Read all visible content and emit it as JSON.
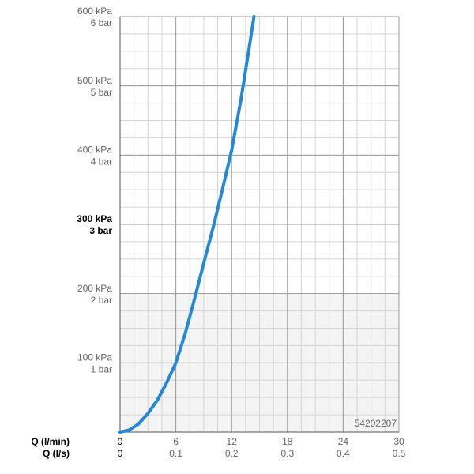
{
  "chart_data": {
    "type": "line",
    "x_label": "Q (l/min)",
    "x2_label": "Q (l/s)",
    "annotation": "54202207",
    "xlim": [
      0,
      30
    ],
    "xticks": [
      0,
      6,
      12,
      18,
      24,
      30
    ],
    "x2lim": [
      0,
      0.5
    ],
    "x2ticks": [
      0,
      0.1,
      0.2,
      0.3,
      0.4,
      0.5
    ],
    "ylim": [
      0,
      600
    ],
    "yticks": [
      {
        "value": 100,
        "label": "100 kPa"
      },
      {
        "value": 200,
        "label": "200 kPa"
      },
      {
        "value": 300,
        "label": "300 kPa"
      },
      {
        "value": 400,
        "label": "400 kPa"
      },
      {
        "value": 500,
        "label": "500 kPa"
      },
      {
        "value": 600,
        "label": "600 kPa"
      }
    ],
    "y2lim": [
      0,
      6
    ],
    "y2ticks": [
      {
        "value": 1,
        "label": "1 bar"
      },
      {
        "value": 2,
        "label": "2 bar"
      },
      {
        "value": 3,
        "label": "3 bar"
      },
      {
        "value": 4,
        "label": "4 bar"
      },
      {
        "value": 5,
        "label": "5 bar"
      },
      {
        "value": 6,
        "label": "6 bar"
      }
    ],
    "highlight_ytick": 300,
    "grid": true,
    "series": [
      {
        "color": "#2388d6",
        "x": [
          0,
          1,
          2,
          3,
          4,
          5,
          6,
          7,
          8,
          9,
          10,
          11,
          12,
          13,
          14,
          14.4
        ],
        "values": [
          0,
          3,
          12,
          27,
          46,
          71,
          100,
          142,
          192,
          244,
          295,
          350,
          407,
          480,
          565,
          600
        ]
      }
    ]
  }
}
